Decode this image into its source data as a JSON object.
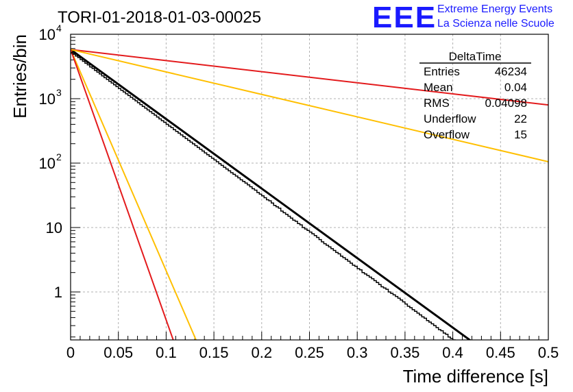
{
  "title": "TORI-01-2018-01-03-00025",
  "logo": {
    "mark": "EEE",
    "line1": "Extreme Energy Events",
    "line2": "La Scienza nelle Scuole",
    "color": "#1a1aff"
  },
  "stats": {
    "header": "DeltaTime",
    "rows": [
      {
        "label": "Entries",
        "value": "46234"
      },
      {
        "label": "Mean",
        "value": "0.04"
      },
      {
        "label": "RMS",
        "value": "0.04098"
      },
      {
        "label": "Underflow",
        "value": "22"
      },
      {
        "label": "Overflow",
        "value": "15"
      }
    ]
  },
  "chart_data": {
    "type": "line",
    "xlabel": "Time difference [s]",
    "ylabel": "Entries/bin",
    "xlim": [
      0,
      0.5
    ],
    "ylim": [
      0.18,
      10000
    ],
    "yscale": "log",
    "grid": true,
    "x_ticks": [
      "0",
      "0.05",
      "0.1",
      "0.15",
      "0.2",
      "0.25",
      "0.3",
      "0.35",
      "0.4",
      "0.45",
      "0.5"
    ],
    "x_tick_values": [
      0,
      0.05,
      0.1,
      0.15,
      0.2,
      0.25,
      0.3,
      0.35,
      0.4,
      0.45,
      0.5
    ],
    "y_ticks": [
      {
        "value": 10000,
        "base": "10",
        "exp": "4"
      },
      {
        "value": 1000,
        "base": "10",
        "exp": "3"
      },
      {
        "value": 100,
        "base": "10",
        "exp": "2"
      },
      {
        "value": 10,
        "base": "10",
        "exp": ""
      },
      {
        "value": 1,
        "base": "1",
        "exp": ""
      }
    ],
    "histogram": {
      "name": "DeltaTime",
      "color": "#000000",
      "bin_width": 0.0025,
      "x_start": 0,
      "values": [
        5200,
        4900,
        4600,
        4350,
        4050,
        3800,
        3550,
        3350,
        3100,
        2950,
        2750,
        2580,
        2420,
        2260,
        2120,
        1990,
        1860,
        1750,
        1640,
        1540,
        1440,
        1350,
        1270,
        1190,
        1120,
        1050,
        985,
        925,
        865,
        810,
        760,
        715,
        670,
        630,
        590,
        555,
        520,
        485,
        455,
        430,
        400,
        375,
        355,
        330,
        310,
        292,
        274,
        257,
        241,
        226,
        212,
        199,
        187,
        175,
        164,
        154,
        144,
        135,
        127,
        119,
        112,
        105,
        98,
        92,
        86,
        81,
        76,
        71,
        67,
        63,
        59,
        55,
        52,
        49,
        46,
        43,
        40,
        38,
        35,
        33,
        31,
        29,
        27,
        26,
        24,
        22,
        21,
        20,
        18,
        17,
        16,
        15,
        14,
        13,
        12.5,
        11.5,
        11,
        10,
        9.5,
        9,
        8.5,
        8,
        7.5,
        7,
        6.5,
        6,
        5.6,
        5.3,
        5,
        4.7,
        4.4,
        4.1,
        3.9,
        3.6,
        3.4,
        3.2,
        3,
        2.8,
        2.6,
        2.5,
        2.3,
        2.2,
        2,
        1.9,
        1.8,
        1.7,
        1.6,
        1.5,
        1.4,
        1.3,
        1.2,
        1.15,
        1.1,
        1,
        0.95,
        0.9,
        0.85,
        0.8,
        0.75,
        0.7,
        0.65,
        0.6,
        0.57,
        0.53,
        0.5,
        0.47,
        0.44,
        0.41,
        0.39,
        0.36,
        0.34,
        0.32,
        0.3,
        0.28,
        0.26,
        0.25,
        0.23,
        0.22,
        0.2,
        0.19,
        0.18,
        0.17,
        0.16,
        0.15,
        0.14,
        0.13,
        0.12,
        0.11,
        0.1,
        0.1,
        0.09,
        0.09,
        0.08,
        0.08,
        0.07,
        0.07,
        0.06,
        0.06,
        0.06,
        0.05,
        0.05,
        0.05,
        0.04,
        0.04,
        0.04,
        0.03,
        0.03,
        0.03,
        0.03,
        0.03,
        0.02,
        0.02,
        0.02,
        0.02,
        0.02,
        0.02,
        0.02
      ]
    },
    "series": [
      {
        "color": "#000000",
        "x": [
          0,
          0.42
        ],
        "y": [
          5800,
          0.17
        ]
      },
      {
        "color": "#e31a1c",
        "x": [
          0,
          0.5
        ],
        "y": [
          5800,
          800
        ]
      },
      {
        "color": "#ffbf00",
        "x": [
          0,
          0.5
        ],
        "y": [
          5800,
          105
        ]
      },
      {
        "color": "#ffbf00",
        "x": [
          0,
          0.132
        ],
        "y": [
          5800,
          0.17
        ]
      },
      {
        "color": "#e31a1c",
        "x": [
          0,
          0.108
        ],
        "y": [
          5800,
          0.17
        ]
      }
    ]
  }
}
